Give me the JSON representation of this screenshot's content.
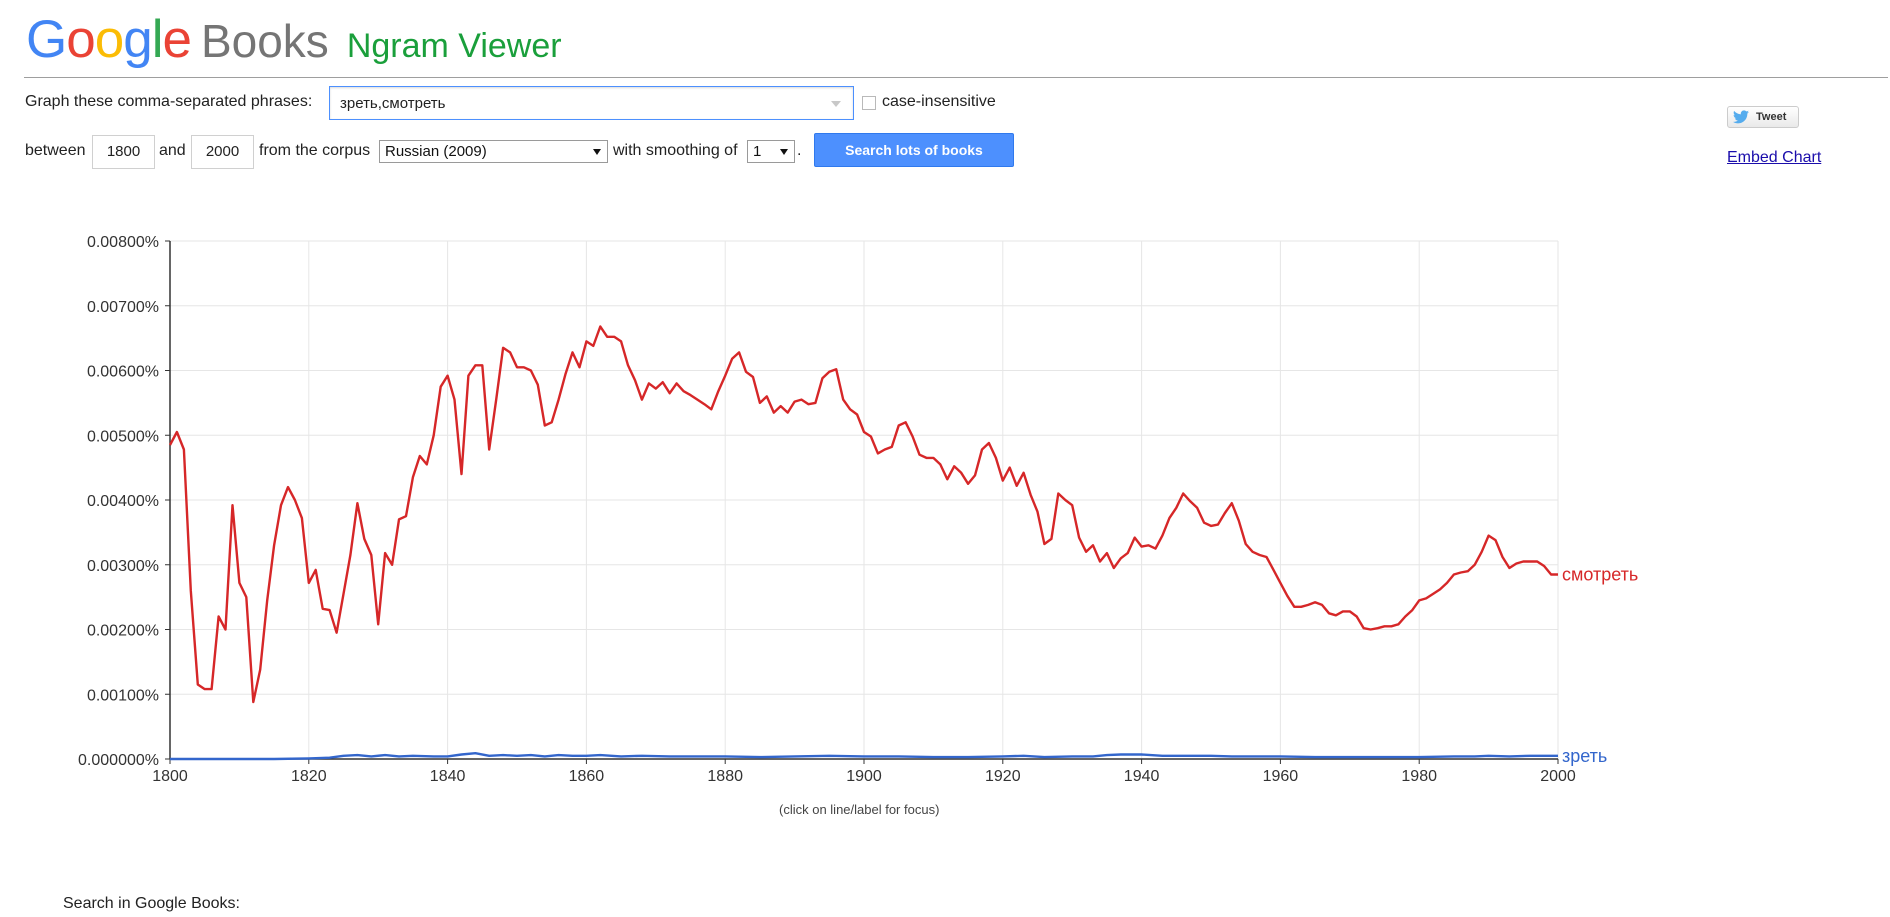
{
  "header": {
    "logo": {
      "letters": [
        "G",
        "o",
        "o",
        "g",
        "l",
        "e"
      ],
      "letter_colors": [
        "#4285f4",
        "#ea4335",
        "#fbbc05",
        "#4285f4",
        "#34a853",
        "#ea4335"
      ],
      "books": "Books"
    },
    "title": "Ngram Viewer"
  },
  "form": {
    "query_label": "Graph these comma-separated phrases:",
    "query_value": "зреть,смотреть",
    "case_insensitive_label": "case-insensitive",
    "between_label": "between",
    "start_year": "1800",
    "and_label": "and",
    "end_year": "2000",
    "corpus_label": "from the corpus",
    "corpus_value": "Russian (2009)",
    "smoothing_label": "with smoothing of",
    "smoothing_value": "1",
    "period": ".",
    "search_button": "Search lots of books"
  },
  "share": {
    "tweet_label": "Tweet",
    "tweet_icon": "twitter-bird-icon",
    "embed_label": "Embed Chart"
  },
  "hint": "(click on line/label for focus)",
  "footer": {
    "search_in_books": "Search in Google Books:"
  },
  "chart_data": {
    "type": "line",
    "title": "",
    "xlabel": "",
    "ylabel": "",
    "xlim": [
      1800,
      2000
    ],
    "ylim": [
      0,
      0.008
    ],
    "x_ticks": [
      "1800",
      "1820",
      "1840",
      "1860",
      "1880",
      "1900",
      "1920",
      "1940",
      "1960",
      "1980",
      "2000"
    ],
    "y_ticks": [
      "0.000000%",
      "0.00100%",
      "0.00200%",
      "0.00300%",
      "0.00400%",
      "0.00500%",
      "0.00600%",
      "0.00700%",
      "0.00800%"
    ],
    "grid": true,
    "series": [
      {
        "name": "смотреть",
        "color": "#d62728",
        "points": [
          [
            1800,
            0.00485
          ],
          [
            1801,
            0.00505
          ],
          [
            1802,
            0.00478
          ],
          [
            1803,
            0.0026
          ],
          [
            1804,
            0.00115
          ],
          [
            1805,
            0.00108
          ],
          [
            1806,
            0.00108
          ],
          [
            1807,
            0.0022
          ],
          [
            1808,
            0.002
          ],
          [
            1809,
            0.00392
          ],
          [
            1810,
            0.00272
          ],
          [
            1811,
            0.0025
          ],
          [
            1812,
            0.00088
          ],
          [
            1813,
            0.00138
          ],
          [
            1814,
            0.00245
          ],
          [
            1815,
            0.0033
          ],
          [
            1816,
            0.00392
          ],
          [
            1817,
            0.0042
          ],
          [
            1818,
            0.004
          ],
          [
            1819,
            0.00372
          ],
          [
            1820,
            0.00272
          ],
          [
            1821,
            0.00292
          ],
          [
            1822,
            0.00232
          ],
          [
            1823,
            0.0023
          ],
          [
            1824,
            0.00195
          ],
          [
            1825,
            0.00255
          ],
          [
            1826,
            0.00315
          ],
          [
            1827,
            0.00395
          ],
          [
            1828,
            0.0034
          ],
          [
            1829,
            0.00315
          ],
          [
            1830,
            0.00208
          ],
          [
            1831,
            0.00318
          ],
          [
            1832,
            0.003
          ],
          [
            1833,
            0.0037
          ],
          [
            1834,
            0.00375
          ],
          [
            1835,
            0.00435
          ],
          [
            1836,
            0.00468
          ],
          [
            1837,
            0.00455
          ],
          [
            1838,
            0.005
          ],
          [
            1839,
            0.00575
          ],
          [
            1840,
            0.00592
          ],
          [
            1841,
            0.00555
          ],
          [
            1842,
            0.0044
          ],
          [
            1843,
            0.00592
          ],
          [
            1844,
            0.00608
          ],
          [
            1845,
            0.00608
          ],
          [
            1846,
            0.00478
          ],
          [
            1847,
            0.00555
          ],
          [
            1848,
            0.00635
          ],
          [
            1849,
            0.00628
          ],
          [
            1850,
            0.00605
          ],
          [
            1851,
            0.00605
          ],
          [
            1852,
            0.006
          ],
          [
            1853,
            0.00578
          ],
          [
            1854,
            0.00515
          ],
          [
            1855,
            0.0052
          ],
          [
            1856,
            0.00555
          ],
          [
            1857,
            0.00595
          ],
          [
            1858,
            0.00628
          ],
          [
            1859,
            0.00605
          ],
          [
            1860,
            0.00645
          ],
          [
            1861,
            0.00638
          ],
          [
            1862,
            0.00668
          ],
          [
            1863,
            0.00652
          ],
          [
            1864,
            0.00652
          ],
          [
            1865,
            0.00645
          ],
          [
            1866,
            0.00608
          ],
          [
            1867,
            0.00585
          ],
          [
            1868,
            0.00555
          ],
          [
            1869,
            0.0058
          ],
          [
            1870,
            0.00572
          ],
          [
            1871,
            0.00582
          ],
          [
            1872,
            0.00565
          ],
          [
            1873,
            0.0058
          ],
          [
            1874,
            0.00568
          ],
          [
            1875,
            0.00562
          ],
          [
            1876,
            0.00555
          ],
          [
            1877,
            0.00548
          ],
          [
            1878,
            0.0054
          ],
          [
            1879,
            0.00568
          ],
          [
            1880,
            0.00592
          ],
          [
            1881,
            0.00618
          ],
          [
            1882,
            0.00628
          ],
          [
            1883,
            0.00598
          ],
          [
            1884,
            0.0059
          ],
          [
            1885,
            0.0055
          ],
          [
            1886,
            0.0056
          ],
          [
            1887,
            0.00535
          ],
          [
            1888,
            0.00545
          ],
          [
            1889,
            0.00535
          ],
          [
            1890,
            0.00552
          ],
          [
            1891,
            0.00555
          ],
          [
            1892,
            0.00548
          ],
          [
            1893,
            0.0055
          ],
          [
            1894,
            0.00588
          ],
          [
            1895,
            0.00598
          ],
          [
            1896,
            0.00602
          ],
          [
            1897,
            0.00555
          ],
          [
            1898,
            0.0054
          ],
          [
            1899,
            0.00532
          ],
          [
            1900,
            0.00505
          ],
          [
            1901,
            0.00498
          ],
          [
            1902,
            0.00472
          ],
          [
            1903,
            0.00478
          ],
          [
            1904,
            0.00482
          ],
          [
            1905,
            0.00515
          ],
          [
            1906,
            0.0052
          ],
          [
            1907,
            0.00498
          ],
          [
            1908,
            0.0047
          ],
          [
            1909,
            0.00465
          ],
          [
            1910,
            0.00465
          ],
          [
            1911,
            0.00455
          ],
          [
            1912,
            0.00432
          ],
          [
            1913,
            0.00452
          ],
          [
            1914,
            0.00442
          ],
          [
            1915,
            0.00425
          ],
          [
            1916,
            0.00438
          ],
          [
            1917,
            0.00478
          ],
          [
            1918,
            0.00488
          ],
          [
            1919,
            0.00465
          ],
          [
            1920,
            0.0043
          ],
          [
            1921,
            0.0045
          ],
          [
            1922,
            0.00422
          ],
          [
            1923,
            0.00442
          ],
          [
            1924,
            0.00408
          ],
          [
            1925,
            0.00382
          ],
          [
            1926,
            0.00332
          ],
          [
            1927,
            0.0034
          ],
          [
            1928,
            0.0041
          ],
          [
            1929,
            0.004
          ],
          [
            1930,
            0.00392
          ],
          [
            1931,
            0.00342
          ],
          [
            1932,
            0.0032
          ],
          [
            1933,
            0.0033
          ],
          [
            1934,
            0.00305
          ],
          [
            1935,
            0.00318
          ],
          [
            1936,
            0.00295
          ],
          [
            1937,
            0.0031
          ],
          [
            1938,
            0.00318
          ],
          [
            1939,
            0.00342
          ],
          [
            1940,
            0.00328
          ],
          [
            1941,
            0.0033
          ],
          [
            1942,
            0.00325
          ],
          [
            1943,
            0.00345
          ],
          [
            1944,
            0.00372
          ],
          [
            1945,
            0.00388
          ],
          [
            1946,
            0.0041
          ],
          [
            1947,
            0.00398
          ],
          [
            1948,
            0.00388
          ],
          [
            1949,
            0.00365
          ],
          [
            1950,
            0.0036
          ],
          [
            1951,
            0.00362
          ],
          [
            1952,
            0.0038
          ],
          [
            1953,
            0.00395
          ],
          [
            1954,
            0.00368
          ],
          [
            1955,
            0.00332
          ],
          [
            1956,
            0.0032
          ],
          [
            1957,
            0.00315
          ],
          [
            1958,
            0.00312
          ],
          [
            1959,
            0.00292
          ],
          [
            1960,
            0.00272
          ],
          [
            1961,
            0.00252
          ],
          [
            1962,
            0.00235
          ],
          [
            1963,
            0.00235
          ],
          [
            1964,
            0.00238
          ],
          [
            1965,
            0.00242
          ],
          [
            1966,
            0.00238
          ],
          [
            1967,
            0.00225
          ],
          [
            1968,
            0.00222
          ],
          [
            1969,
            0.00228
          ],
          [
            1970,
            0.00228
          ],
          [
            1971,
            0.0022
          ],
          [
            1972,
            0.00202
          ],
          [
            1973,
            0.002
          ],
          [
            1974,
            0.00202
          ],
          [
            1975,
            0.00205
          ],
          [
            1976,
            0.00205
          ],
          [
            1977,
            0.00208
          ],
          [
            1978,
            0.0022
          ],
          [
            1979,
            0.0023
          ],
          [
            1980,
            0.00245
          ],
          [
            1981,
            0.00248
          ],
          [
            1982,
            0.00255
          ],
          [
            1983,
            0.00262
          ],
          [
            1984,
            0.00272
          ],
          [
            1985,
            0.00285
          ],
          [
            1986,
            0.00288
          ],
          [
            1987,
            0.0029
          ],
          [
            1988,
            0.003
          ],
          [
            1989,
            0.0032
          ],
          [
            1990,
            0.00345
          ],
          [
            1991,
            0.00338
          ],
          [
            1992,
            0.00312
          ],
          [
            1993,
            0.00295
          ],
          [
            1994,
            0.00302
          ],
          [
            1995,
            0.00305
          ],
          [
            1996,
            0.00305
          ],
          [
            1997,
            0.00305
          ],
          [
            1998,
            0.00298
          ],
          [
            1999,
            0.00285
          ],
          [
            2000,
            0.00285
          ]
        ]
      },
      {
        "name": "зреть",
        "color": "#3366cc",
        "points": [
          [
            1800,
            0.0
          ],
          [
            1805,
            0.0
          ],
          [
            1810,
            0.0
          ],
          [
            1815,
            0.0
          ],
          [
            1820,
            1e-05
          ],
          [
            1823,
            2e-05
          ],
          [
            1825,
            5e-05
          ],
          [
            1827,
            6e-05
          ],
          [
            1829,
            4e-05
          ],
          [
            1831,
            6e-05
          ],
          [
            1833,
            4e-05
          ],
          [
            1835,
            5e-05
          ],
          [
            1838,
            4e-05
          ],
          [
            1840,
            4e-05
          ],
          [
            1842,
            7e-05
          ],
          [
            1844,
            9e-05
          ],
          [
            1846,
            5e-05
          ],
          [
            1848,
            6e-05
          ],
          [
            1850,
            5e-05
          ],
          [
            1852,
            6e-05
          ],
          [
            1854,
            4e-05
          ],
          [
            1856,
            6e-05
          ],
          [
            1858,
            5e-05
          ],
          [
            1860,
            5e-05
          ],
          [
            1862,
            6e-05
          ],
          [
            1865,
            4e-05
          ],
          [
            1868,
            5e-05
          ],
          [
            1872,
            4e-05
          ],
          [
            1876,
            4e-05
          ],
          [
            1880,
            4e-05
          ],
          [
            1885,
            3e-05
          ],
          [
            1890,
            4e-05
          ],
          [
            1895,
            5e-05
          ],
          [
            1900,
            4e-05
          ],
          [
            1905,
            4e-05
          ],
          [
            1910,
            3e-05
          ],
          [
            1915,
            3e-05
          ],
          [
            1920,
            4e-05
          ],
          [
            1923,
            5e-05
          ],
          [
            1926,
            3e-05
          ],
          [
            1930,
            4e-05
          ],
          [
            1933,
            4e-05
          ],
          [
            1935,
            6e-05
          ],
          [
            1937,
            7e-05
          ],
          [
            1940,
            7e-05
          ],
          [
            1943,
            5e-05
          ],
          [
            1946,
            5e-05
          ],
          [
            1950,
            5e-05
          ],
          [
            1953,
            4e-05
          ],
          [
            1956,
            4e-05
          ],
          [
            1960,
            4e-05
          ],
          [
            1965,
            3e-05
          ],
          [
            1970,
            3e-05
          ],
          [
            1975,
            3e-05
          ],
          [
            1980,
            3e-05
          ],
          [
            1985,
            4e-05
          ],
          [
            1988,
            4e-05
          ],
          [
            1990,
            5e-05
          ],
          [
            1993,
            4e-05
          ],
          [
            1996,
            5e-05
          ],
          [
            2000,
            5e-05
          ]
        ]
      }
    ]
  }
}
